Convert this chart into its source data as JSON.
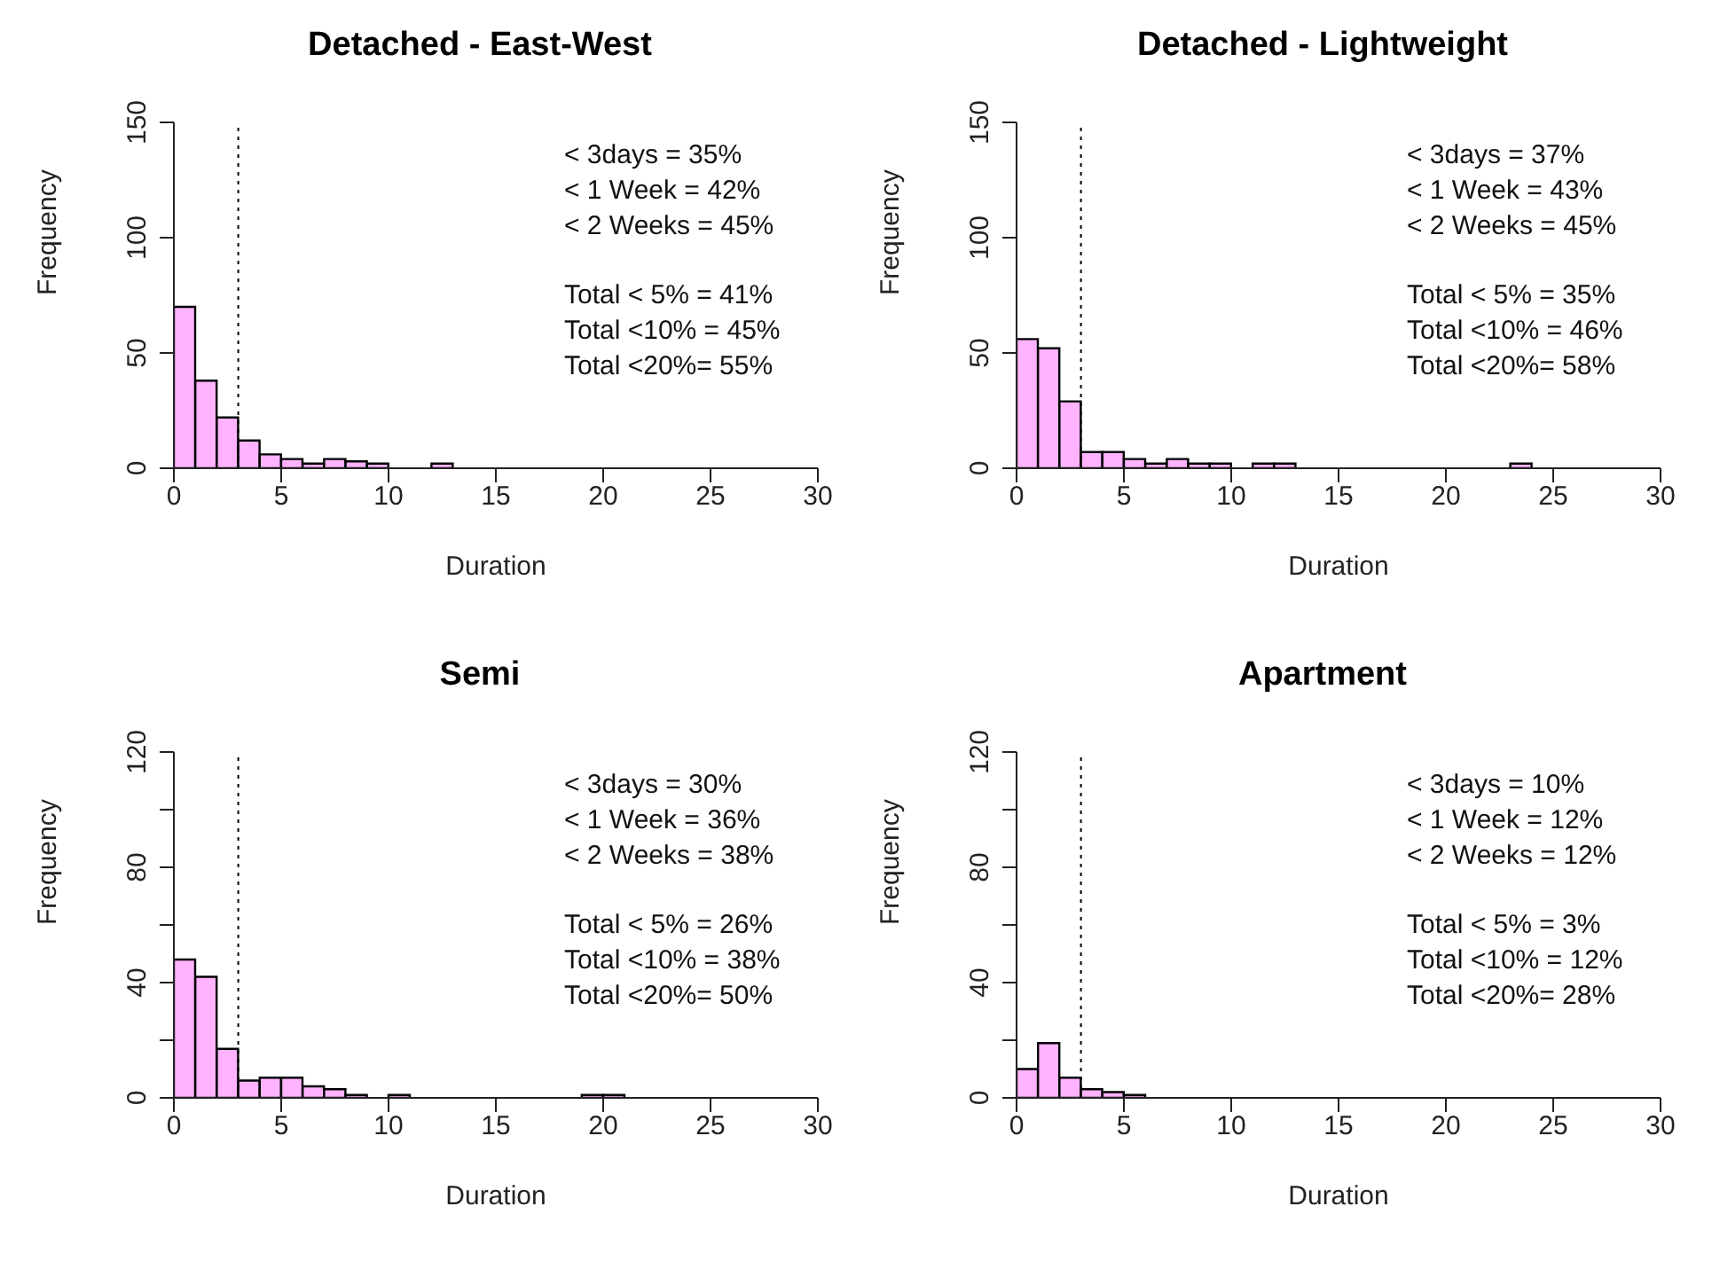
{
  "chart_data": [
    {
      "type": "histogram",
      "title": "Detached - East-West",
      "xlabel": "Duration",
      "ylabel": "Frequency",
      "color": "#ffb3ff",
      "bins": [
        0,
        1,
        2,
        3,
        4,
        5,
        6,
        7,
        8,
        9,
        10,
        11,
        12,
        13,
        14,
        15,
        16,
        17,
        18,
        19,
        20,
        21,
        22,
        23,
        24,
        25,
        26,
        27,
        28,
        29,
        30
      ],
      "values": [
        70,
        38,
        22,
        12,
        6,
        4,
        2,
        4,
        3,
        2,
        0,
        0,
        2,
        0,
        0,
        0,
        0,
        0,
        0,
        0,
        0,
        0,
        0,
        0,
        0,
        0,
        0,
        0,
        0,
        0
      ],
      "xlim": [
        0,
        30
      ],
      "xticks": [
        0,
        5,
        10,
        15,
        20,
        25,
        30
      ],
      "ylim": [
        0,
        150
      ],
      "yticks": [
        0,
        50,
        100,
        150
      ],
      "ref_lines": [
        {
          "axis": "x",
          "value": 3,
          "line_style": "dotted",
          "color": "#000000"
        }
      ],
      "annotations": [
        "< 3days = 35%",
        "< 1 Week = 42%",
        "< 2 Weeks = 45%",
        "Total < 5% = 41%",
        "Total <10% = 45%",
        "Total <20%= 55%"
      ]
    },
    {
      "type": "histogram",
      "title": "Detached - Lightweight",
      "xlabel": "Duration",
      "ylabel": "Frequency",
      "color": "#ffb3ff",
      "bins": [
        0,
        1,
        2,
        3,
        4,
        5,
        6,
        7,
        8,
        9,
        10,
        11,
        12,
        13,
        14,
        15,
        16,
        17,
        18,
        19,
        20,
        21,
        22,
        23,
        24,
        25,
        26,
        27,
        28,
        29,
        30
      ],
      "values": [
        56,
        52,
        29,
        7,
        7,
        4,
        2,
        4,
        2,
        2,
        0,
        2,
        2,
        0,
        0,
        0,
        0,
        0,
        0,
        0,
        0,
        0,
        0,
        2,
        0,
        0,
        0,
        0,
        0,
        0
      ],
      "xlim": [
        0,
        30
      ],
      "xticks": [
        0,
        5,
        10,
        15,
        20,
        25,
        30
      ],
      "ylim": [
        0,
        150
      ],
      "yticks": [
        0,
        50,
        100,
        150
      ],
      "ref_lines": [
        {
          "axis": "x",
          "value": 3,
          "line_style": "dotted",
          "color": "#000000"
        }
      ],
      "annotations": [
        "< 3days = 37%",
        "< 1 Week = 43%",
        "< 2 Weeks = 45%",
        "Total < 5% = 35%",
        "Total <10% = 46%",
        "Total <20%= 58%"
      ]
    },
    {
      "type": "histogram",
      "title": "Semi",
      "xlabel": "Duration",
      "ylabel": "Frequency",
      "color": "#ffb3ff",
      "bins": [
        0,
        1,
        2,
        3,
        4,
        5,
        6,
        7,
        8,
        9,
        10,
        11,
        12,
        13,
        14,
        15,
        16,
        17,
        18,
        19,
        20,
        21,
        22,
        23,
        24,
        25,
        26,
        27,
        28,
        29,
        30
      ],
      "values": [
        48,
        42,
        17,
        6,
        7,
        7,
        4,
        3,
        1,
        0,
        1,
        0,
        0,
        0,
        0,
        0,
        0,
        0,
        0,
        1,
        1,
        0,
        0,
        0,
        0,
        0,
        0,
        0,
        0,
        0
      ],
      "xlim": [
        0,
        30
      ],
      "xticks": [
        0,
        5,
        10,
        15,
        20,
        25,
        30
      ],
      "ylim": [
        0,
        120
      ],
      "yticks": [
        0,
        {
          "value": 20,
          "label": null
        },
        40,
        {
          "value": 60,
          "label": null
        },
        80,
        {
          "value": 100,
          "label": null
        },
        120
      ],
      "ref_lines": [
        {
          "axis": "x",
          "value": 3,
          "line_style": "dotted",
          "color": "#000000"
        }
      ],
      "annotations": [
        "< 3days = 30%",
        "< 1 Week = 36%",
        "< 2 Weeks = 38%",
        "Total < 5% = 26%",
        "Total <10% = 38%",
        "Total <20%= 50%"
      ]
    },
    {
      "type": "histogram",
      "title": "Apartment",
      "xlabel": "Duration",
      "ylabel": "Frequency",
      "color": "#ffb3ff",
      "bins": [
        0,
        1,
        2,
        3,
        4,
        5,
        6,
        7,
        8,
        9,
        10,
        11,
        12,
        13,
        14,
        15,
        16,
        17,
        18,
        19,
        20,
        21,
        22,
        23,
        24,
        25,
        26,
        27,
        28,
        29,
        30
      ],
      "values": [
        10,
        19,
        7,
        3,
        2,
        1,
        0,
        0,
        0,
        0,
        0,
        0,
        0,
        0,
        0,
        0,
        0,
        0,
        0,
        0,
        0,
        0,
        0,
        0,
        0,
        0,
        0,
        0,
        0,
        0
      ],
      "xlim": [
        0,
        30
      ],
      "xticks": [
        0,
        5,
        10,
        15,
        20,
        25,
        30
      ],
      "ylim": [
        0,
        120
      ],
      "yticks": [
        0,
        {
          "value": 20,
          "label": null
        },
        40,
        {
          "value": 60,
          "label": null
        },
        80,
        {
          "value": 100,
          "label": null
        },
        120
      ],
      "ref_lines": [
        {
          "axis": "x",
          "value": 3,
          "line_style": "dotted",
          "color": "#000000"
        }
      ],
      "annotations": [
        "< 3days = 10%",
        "< 1 Week = 12%",
        "< 2 Weeks = 12%",
        "Total < 5% = 3%",
        "Total <10% = 12%",
        "Total <20%= 28%"
      ]
    }
  ]
}
